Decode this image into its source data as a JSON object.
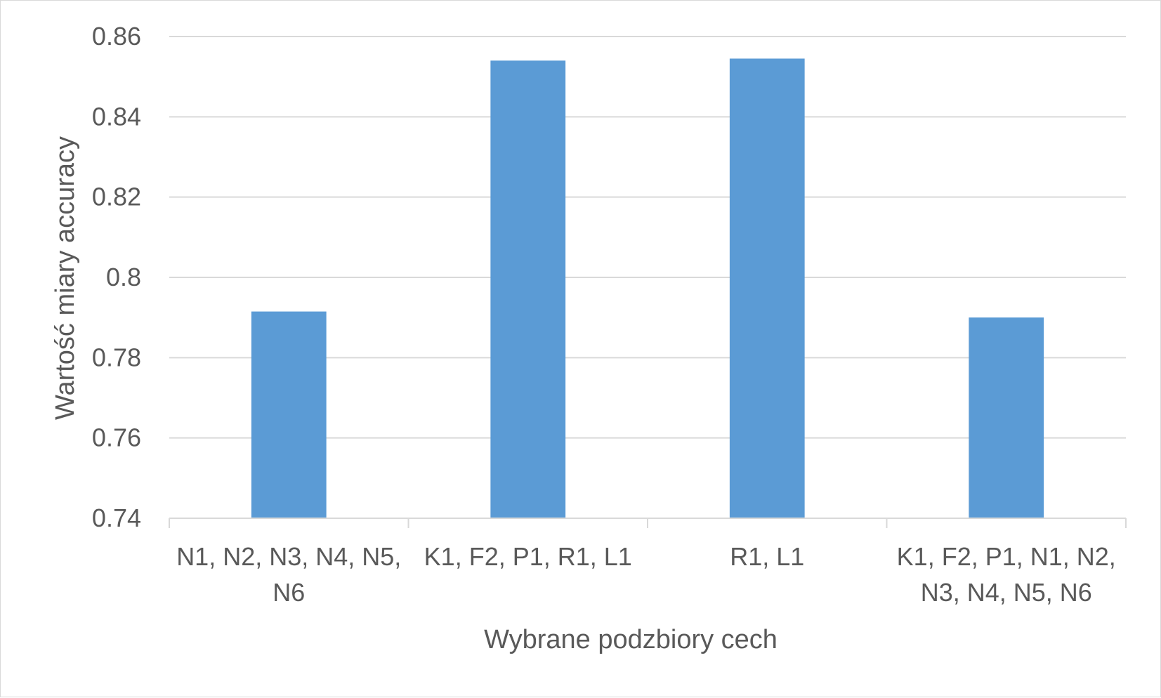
{
  "chart_data": {
    "type": "bar",
    "title": "",
    "xlabel": "Wybrane podzbiory cech",
    "ylabel": "Wartość miary accuracy",
    "categories": [
      [
        "N1, N2, N3, N4, N5,",
        "N6"
      ],
      [
        "K1, F2, P1, R1, L1"
      ],
      [
        "R1, L1"
      ],
      [
        "K1, F2, P1, N1, N2,",
        "N3, N4, N5, N6"
      ]
    ],
    "values": [
      0.7915,
      0.854,
      0.8545,
      0.79
    ],
    "ylim": [
      0.74,
      0.86
    ],
    "yticks": [
      "0.74",
      "0.76",
      "0.78",
      "0.8",
      "0.82",
      "0.84",
      "0.86"
    ],
    "grid": true,
    "bar_color": "#5b9bd5",
    "grid_color": "#d9d9d9",
    "axis_color": "#d9d9d9",
    "text_color": "#595959"
  }
}
